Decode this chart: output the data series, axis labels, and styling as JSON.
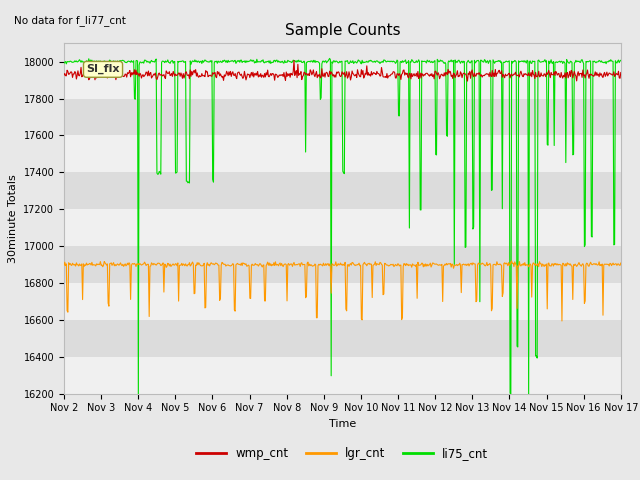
{
  "title": "Sample Counts",
  "no_data_label": "No data for f_li77_cnt",
  "ylabel": "30minute Totals",
  "xlabel": "Time",
  "ylim": [
    16200,
    18100
  ],
  "xtick_labels": [
    "Nov 2",
    "Nov 3",
    "Nov 4",
    "Nov 5",
    "Nov 6",
    "Nov 7",
    "Nov 8",
    "Nov 9",
    "Nov 10",
    "Nov 11",
    "Nov 12",
    "Nov 13",
    "Nov 14",
    "Nov 15",
    "Nov 16",
    "Nov 17"
  ],
  "ytick_values": [
    16200,
    16400,
    16600,
    16800,
    17000,
    17200,
    17400,
    17600,
    17800,
    18000
  ],
  "wmp_baseline": 17930,
  "lgr_baseline": 16900,
  "li75_baseline": 18000,
  "outer_bg": "#e8e8e8",
  "band_light": "#f0f0f0",
  "band_dark": "#dcdcdc",
  "wmp_color": "#cc0000",
  "lgr_color": "#ff9900",
  "li75_color": "#00dd00",
  "legend_items": [
    "wmp_cnt",
    "lgr_cnt",
    "li75_cnt"
  ],
  "annotation_text": "SI_flx",
  "title_fontsize": 11,
  "axis_fontsize": 8,
  "tick_fontsize": 7
}
